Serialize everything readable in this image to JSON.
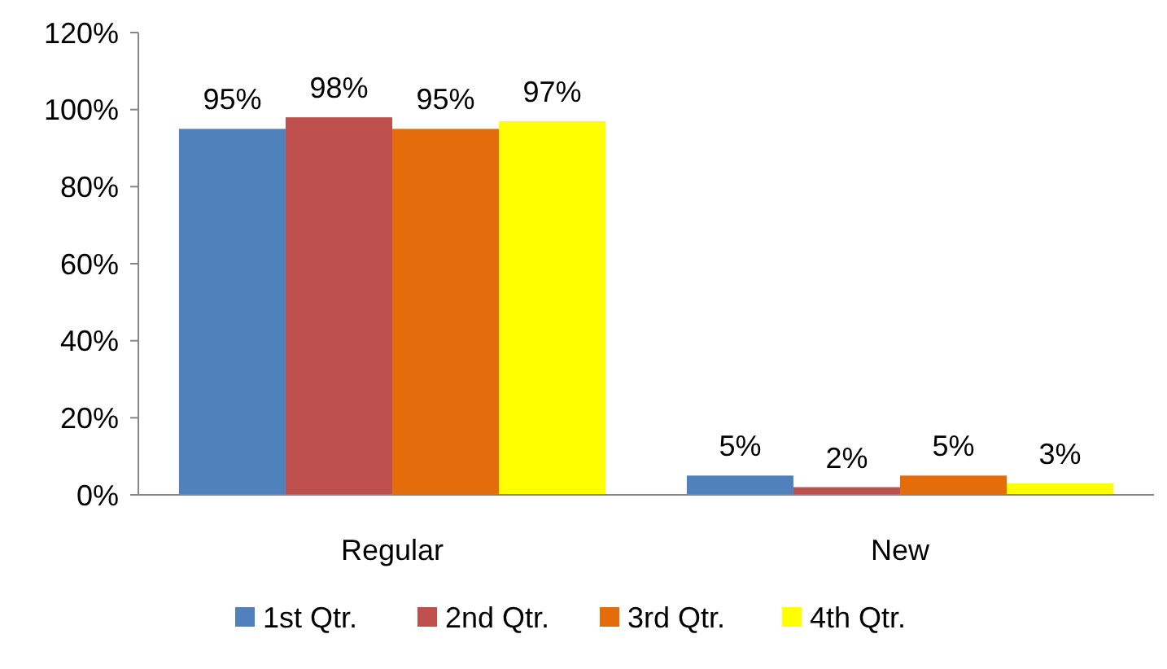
{
  "chart_data": {
    "type": "bar",
    "categories": [
      "Regular",
      "New"
    ],
    "series": [
      {
        "name": "1st Qtr.",
        "color": "#4f81bd",
        "values": [
          95,
          5
        ],
        "value_labels": [
          "95%",
          "5%"
        ]
      },
      {
        "name": "2nd Qtr.",
        "color": "#c0504d",
        "values": [
          98,
          2
        ],
        "value_labels": [
          "98%",
          "2%"
        ]
      },
      {
        "name": "3rd Qtr.",
        "color": "#e46c0a",
        "values": [
          95,
          5
        ],
        "value_labels": [
          "95%",
          "5%"
        ]
      },
      {
        "name": "4th Qtr.",
        "color": "#ffff00",
        "values": [
          97,
          3
        ],
        "value_labels": [
          "97%",
          "3%"
        ]
      }
    ],
    "ylim": [
      0,
      120
    ],
    "yticks": [
      {
        "value": 0,
        "label": "0%"
      },
      {
        "value": 20,
        "label": "20%"
      },
      {
        "value": 40,
        "label": "40%"
      },
      {
        "value": 60,
        "label": "60%"
      },
      {
        "value": 80,
        "label": "80%"
      },
      {
        "value": 100,
        "label": "100%"
      },
      {
        "value": 120,
        "label": "120%"
      }
    ],
    "grid": false,
    "legend": "bottom"
  }
}
